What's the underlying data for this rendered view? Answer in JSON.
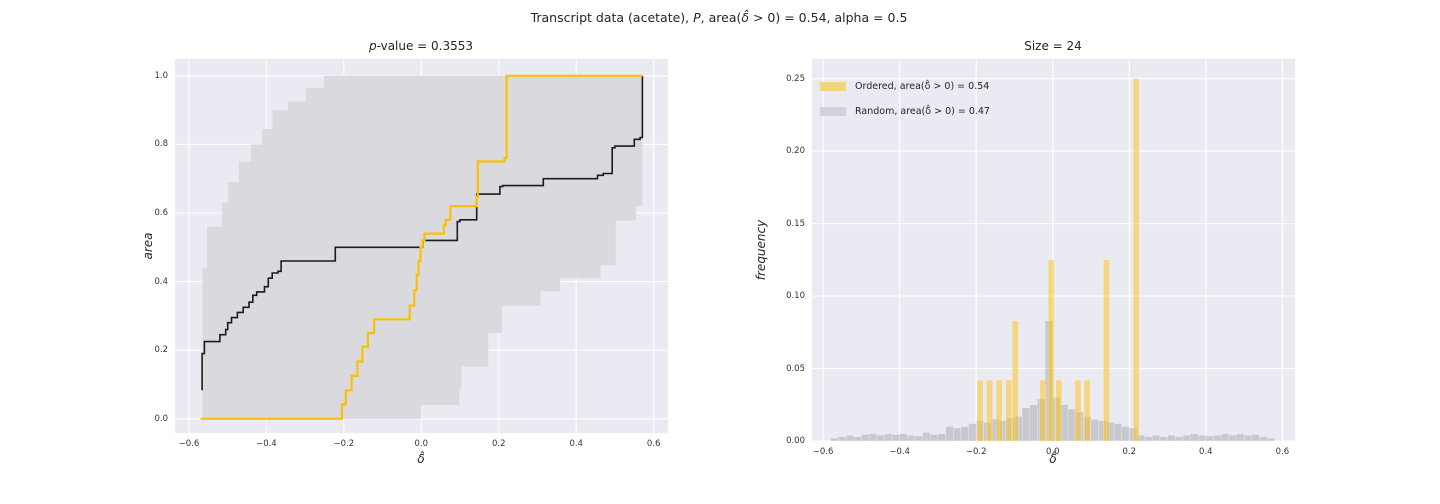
{
  "figure": {
    "title_segments": [
      {
        "text": "Transcript data (acetate), ",
        "italic": false
      },
      {
        "text": "P",
        "italic": true
      },
      {
        "text": ", area(",
        "italic": false
      },
      {
        "text": "δ̂",
        "italic": true
      },
      {
        "text": " > 0) = 0.54, alpha = 0.5",
        "italic": false
      }
    ],
    "colors": {
      "figure_bg": "#ffffff",
      "axes_bg": "#eaeaf2",
      "grid": "#ffffff",
      "band": "#d9d9de",
      "ordered_line": "#fcbf07",
      "random_line": "#1c1c1c",
      "ordered_bar": "rgba(252,191,20,0.5)",
      "random_bar": "rgba(128,128,138,0.32)",
      "legend_ordered_swatch": "#f4d57c",
      "legend_random_swatch": "#d2d2d8"
    }
  },
  "chart_data": [
    {
      "type": "line",
      "title_segments": [
        {
          "text": "p",
          "italic": true
        },
        {
          "text": "-value = 0.3553",
          "italic": false
        }
      ],
      "xlabel": "δ̂",
      "ylabel": "area",
      "xlim": [
        -0.636,
        0.637
      ],
      "ylim": [
        -0.0415,
        1.049
      ],
      "grid": true,
      "xticks": [
        {
          "v": -0.6,
          "label": "−0.6"
        },
        {
          "v": -0.4,
          "label": "−0.4"
        },
        {
          "v": -0.2,
          "label": "−0.2"
        },
        {
          "v": 0.0,
          "label": "0.0"
        },
        {
          "v": 0.2,
          "label": "0.2"
        },
        {
          "v": 0.4,
          "label": "0.4"
        },
        {
          "v": 0.6,
          "label": "0.6"
        }
      ],
      "yticks": [
        {
          "v": 0.0,
          "label": "0.0"
        },
        {
          "v": 0.2,
          "label": "0.2"
        },
        {
          "v": 0.4,
          "label": "0.4"
        },
        {
          "v": 0.6,
          "label": "0.6"
        },
        {
          "v": 0.8,
          "label": "0.8"
        },
        {
          "v": 1.0,
          "label": "1.0"
        }
      ],
      "band": {
        "name": "random-confidence-band",
        "lower": [
          [
            -0.565,
            0
          ],
          [
            0.0,
            0
          ],
          [
            0.0,
            0.04
          ],
          [
            0.098,
            0.04
          ],
          [
            0.098,
            0.09
          ],
          [
            0.104,
            0.09
          ],
          [
            0.104,
            0.152
          ],
          [
            0.173,
            0.152
          ],
          [
            0.173,
            0.25
          ],
          [
            0.208,
            0.25
          ],
          [
            0.208,
            0.33
          ],
          [
            0.308,
            0.33
          ],
          [
            0.308,
            0.372
          ],
          [
            0.358,
            0.372
          ],
          [
            0.358,
            0.41
          ],
          [
            0.463,
            0.41
          ],
          [
            0.463,
            0.447
          ],
          [
            0.502,
            0.447
          ],
          [
            0.502,
            0.578
          ],
          [
            0.554,
            0.578
          ],
          [
            0.554,
            0.62
          ],
          [
            0.571,
            0.62
          ]
        ],
        "upper": [
          [
            -0.565,
            0.44
          ],
          [
            -0.553,
            0.44
          ],
          [
            -0.553,
            0.56
          ],
          [
            -0.515,
            0.56
          ],
          [
            -0.515,
            0.63
          ],
          [
            -0.499,
            0.63
          ],
          [
            -0.499,
            0.69
          ],
          [
            -0.471,
            0.69
          ],
          [
            -0.471,
            0.75
          ],
          [
            -0.44,
            0.75
          ],
          [
            -0.44,
            0.8
          ],
          [
            -0.411,
            0.8
          ],
          [
            -0.411,
            0.845
          ],
          [
            -0.384,
            0.845
          ],
          [
            -0.384,
            0.9
          ],
          [
            -0.344,
            0.9
          ],
          [
            -0.344,
            0.925
          ],
          [
            -0.299,
            0.925
          ],
          [
            -0.299,
            0.965
          ],
          [
            -0.251,
            0.965
          ],
          [
            -0.251,
            1.0
          ],
          [
            0.571,
            1.0
          ]
        ]
      },
      "series": [
        {
          "name": "random-mean-curve",
          "color_key": "random_line",
          "line_width": 1.6,
          "points": [
            [
              -0.566,
              0.083
            ],
            [
              -0.566,
              0.19
            ],
            [
              -0.56,
              0.19
            ],
            [
              -0.56,
              0.225
            ],
            [
              -0.52,
              0.225
            ],
            [
              -0.52,
              0.245
            ],
            [
              -0.505,
              0.245
            ],
            [
              -0.505,
              0.26
            ],
            [
              -0.5,
              0.26
            ],
            [
              -0.5,
              0.28
            ],
            [
              -0.49,
              0.28
            ],
            [
              -0.49,
              0.295
            ],
            [
              -0.475,
              0.295
            ],
            [
              -0.475,
              0.31
            ],
            [
              -0.46,
              0.31
            ],
            [
              -0.46,
              0.325
            ],
            [
              -0.445,
              0.325
            ],
            [
              -0.445,
              0.34
            ],
            [
              -0.435,
              0.34
            ],
            [
              -0.435,
              0.36
            ],
            [
              -0.425,
              0.36
            ],
            [
              -0.425,
              0.37
            ],
            [
              -0.405,
              0.37
            ],
            [
              -0.405,
              0.385
            ],
            [
              -0.395,
              0.385
            ],
            [
              -0.395,
              0.41
            ],
            [
              -0.385,
              0.41
            ],
            [
              -0.385,
              0.425
            ],
            [
              -0.37,
              0.425
            ],
            [
              -0.37,
              0.43
            ],
            [
              -0.362,
              0.43
            ],
            [
              -0.362,
              0.46
            ],
            [
              -0.222,
              0.46
            ],
            [
              -0.222,
              0.5
            ],
            [
              0.004,
              0.5
            ],
            [
              0.004,
              0.52
            ],
            [
              0.093,
              0.52
            ],
            [
              0.093,
              0.575
            ],
            [
              0.1,
              0.575
            ],
            [
              0.1,
              0.58
            ],
            [
              0.143,
              0.58
            ],
            [
              0.143,
              0.655
            ],
            [
              0.203,
              0.655
            ],
            [
              0.203,
              0.677
            ],
            [
              0.21,
              0.677
            ],
            [
              0.21,
              0.68
            ],
            [
              0.315,
              0.68
            ],
            [
              0.315,
              0.7
            ],
            [
              0.455,
              0.7
            ],
            [
              0.455,
              0.71
            ],
            [
              0.47,
              0.71
            ],
            [
              0.47,
              0.715
            ],
            [
              0.493,
              0.715
            ],
            [
              0.493,
              0.79
            ],
            [
              0.5,
              0.79
            ],
            [
              0.5,
              0.795
            ],
            [
              0.55,
              0.795
            ],
            [
              0.55,
              0.815
            ],
            [
              0.565,
              0.815
            ],
            [
              0.565,
              0.82
            ],
            [
              0.571,
              0.82
            ],
            [
              0.571,
              1.0
            ]
          ]
        },
        {
          "name": "ordered-curve",
          "color_key": "ordered_line",
          "line_width": 2.2,
          "points": [
            [
              -0.57,
              0.0
            ],
            [
              -0.205,
              0.0
            ],
            [
              -0.205,
              0.042
            ],
            [
              -0.195,
              0.042
            ],
            [
              -0.195,
              0.083
            ],
            [
              -0.18,
              0.083
            ],
            [
              -0.18,
              0.125
            ],
            [
              -0.165,
              0.125
            ],
            [
              -0.165,
              0.167
            ],
            [
              -0.152,
              0.167
            ],
            [
              -0.152,
              0.21
            ],
            [
              -0.138,
              0.21
            ],
            [
              -0.138,
              0.25
            ],
            [
              -0.122,
              0.25
            ],
            [
              -0.122,
              0.29
            ],
            [
              -0.03,
              0.29
            ],
            [
              -0.03,
              0.33
            ],
            [
              -0.018,
              0.33
            ],
            [
              -0.018,
              0.375
            ],
            [
              -0.012,
              0.375
            ],
            [
              -0.012,
              0.42
            ],
            [
              -0.007,
              0.42
            ],
            [
              -0.007,
              0.46
            ],
            [
              -0.002,
              0.46
            ],
            [
              -0.002,
              0.5
            ],
            [
              0.003,
              0.5
            ],
            [
              0.003,
              0.52
            ],
            [
              0.008,
              0.52
            ],
            [
              0.008,
              0.54
            ],
            [
              0.058,
              0.54
            ],
            [
              0.058,
              0.565
            ],
            [
              0.063,
              0.565
            ],
            [
              0.063,
              0.58
            ],
            [
              0.075,
              0.58
            ],
            [
              0.075,
              0.62
            ],
            [
              0.143,
              0.62
            ],
            [
              0.143,
              0.648
            ],
            [
              0.146,
              0.648
            ],
            [
              0.146,
              0.75
            ],
            [
              0.215,
              0.75
            ],
            [
              0.215,
              0.76
            ],
            [
              0.22,
              0.76
            ],
            [
              0.22,
              1.0
            ],
            [
              0.571,
              1.0
            ]
          ]
        }
      ]
    },
    {
      "type": "bar",
      "title": "Size = 24",
      "xlabel": "δ̂",
      "ylabel": "frequency",
      "xlim": [
        -0.629,
        0.633
      ],
      "ylim": [
        0,
        0.2636
      ],
      "grid": true,
      "xticks": [
        {
          "v": -0.6,
          "label": "−0.6"
        },
        {
          "v": -0.4,
          "label": "−0.4"
        },
        {
          "v": -0.2,
          "label": "−0.2"
        },
        {
          "v": 0.0,
          "label": "0.0"
        },
        {
          "v": 0.2,
          "label": "0.2"
        },
        {
          "v": 0.4,
          "label": "0.4"
        },
        {
          "v": 0.6,
          "label": "0.6"
        }
      ],
      "yticks": [
        {
          "v": 0.0,
          "label": "0.00"
        },
        {
          "v": 0.05,
          "label": "0.05"
        },
        {
          "v": 0.1,
          "label": "0.10"
        },
        {
          "v": 0.15,
          "label": "0.15"
        },
        {
          "v": 0.2,
          "label": "0.20"
        },
        {
          "v": 0.25,
          "label": "0.25"
        }
      ],
      "gray_hist": {
        "name": "random-histogram",
        "color_key": "random_bar",
        "bin_width": 0.02,
        "bars": [
          [
            -0.57,
            0.002
          ],
          [
            -0.55,
            0.003
          ],
          [
            -0.53,
            0.004
          ],
          [
            -0.51,
            0.003
          ],
          [
            -0.49,
            0.0045
          ],
          [
            -0.47,
            0.005
          ],
          [
            -0.45,
            0.004
          ],
          [
            -0.43,
            0.005
          ],
          [
            -0.41,
            0.0045
          ],
          [
            -0.39,
            0.005
          ],
          [
            -0.37,
            0.004
          ],
          [
            -0.35,
            0.0035
          ],
          [
            -0.33,
            0.006
          ],
          [
            -0.31,
            0.0045
          ],
          [
            -0.29,
            0.005
          ],
          [
            -0.27,
            0.01
          ],
          [
            -0.25,
            0.009
          ],
          [
            -0.23,
            0.01
          ],
          [
            -0.21,
            0.012
          ],
          [
            -0.19,
            0.014
          ],
          [
            -0.17,
            0.013
          ],
          [
            -0.15,
            0.015
          ],
          [
            -0.13,
            0.014
          ],
          [
            -0.11,
            0.016
          ],
          [
            -0.09,
            0.017
          ],
          [
            -0.07,
            0.023
          ],
          [
            -0.05,
            0.025
          ],
          [
            -0.03,
            0.029
          ],
          [
            -0.01,
            0.083
          ],
          [
            0.01,
            0.03
          ],
          [
            0.03,
            0.025
          ],
          [
            0.05,
            0.022
          ],
          [
            0.07,
            0.02
          ],
          [
            0.09,
            0.017
          ],
          [
            0.11,
            0.015
          ],
          [
            0.13,
            0.014
          ],
          [
            0.15,
            0.013
          ],
          [
            0.17,
            0.012
          ],
          [
            0.19,
            0.01
          ],
          [
            0.21,
            0.009
          ],
          [
            0.23,
            0.004
          ],
          [
            0.25,
            0.003
          ],
          [
            0.27,
            0.004
          ],
          [
            0.29,
            0.003
          ],
          [
            0.31,
            0.004
          ],
          [
            0.33,
            0.003
          ],
          [
            0.35,
            0.004
          ],
          [
            0.37,
            0.005
          ],
          [
            0.39,
            0.004
          ],
          [
            0.41,
            0.0035
          ],
          [
            0.43,
            0.004
          ],
          [
            0.45,
            0.005
          ],
          [
            0.47,
            0.004
          ],
          [
            0.49,
            0.005
          ],
          [
            0.51,
            0.004
          ],
          [
            0.53,
            0.0045
          ],
          [
            0.55,
            0.003
          ],
          [
            0.57,
            0.002
          ]
        ]
      },
      "yellow_bars": {
        "name": "ordered-histogram",
        "color_key": "ordered_bar",
        "bin_width": 0.016,
        "bars": [
          [
            -0.19,
            0.042
          ],
          [
            -0.165,
            0.042
          ],
          [
            -0.14,
            0.042
          ],
          [
            -0.115,
            0.042
          ],
          [
            -0.098,
            0.083
          ],
          [
            -0.026,
            0.042
          ],
          [
            -0.004,
            0.125
          ],
          [
            0.016,
            0.042
          ],
          [
            0.066,
            0.042
          ],
          [
            0.09,
            0.042
          ],
          [
            0.14,
            0.125
          ],
          [
            0.218,
            0.25
          ]
        ]
      },
      "legend": [
        {
          "label": "Ordered, area(δ̂ > 0) = 0.54",
          "swatch_key": "legend_ordered_swatch"
        },
        {
          "label": "Random, area(δ̂ > 0) = 0.47",
          "swatch_key": "legend_random_swatch"
        }
      ]
    }
  ]
}
